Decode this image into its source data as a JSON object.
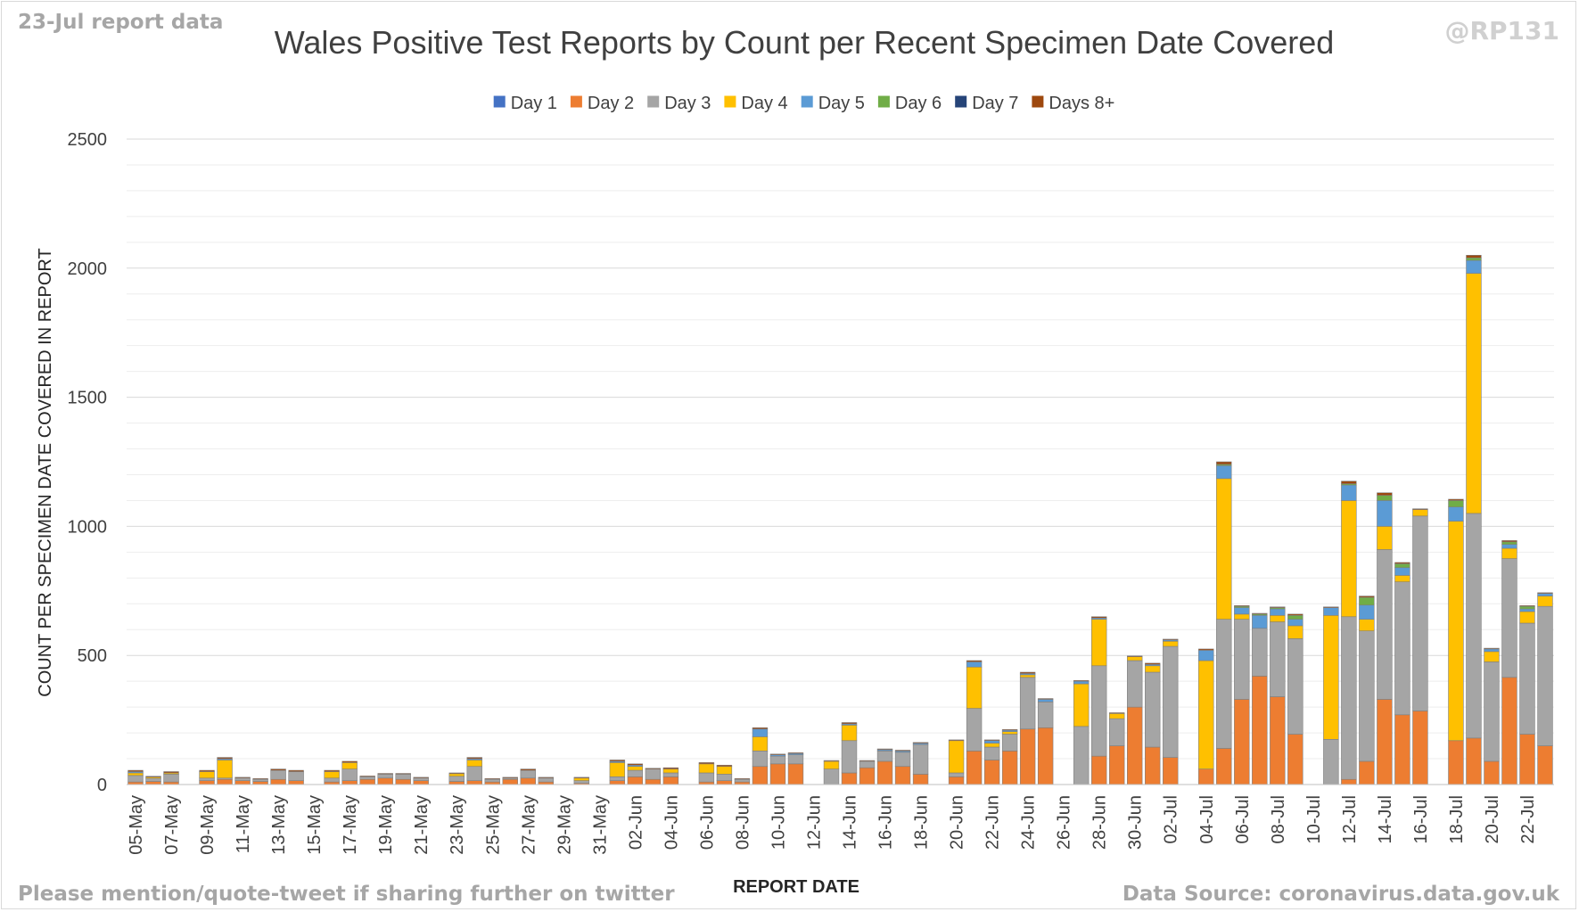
{
  "header": {
    "report_tag": "23-Jul report data",
    "handle": "@RP131"
  },
  "footer": {
    "note": "Please mention/quote-tweet if sharing further on twitter",
    "source": "Data Source: coronavirus.data.gov.uk"
  },
  "colors": {
    "Day 1": "#4472c4",
    "Day 2": "#ed7d31",
    "Day 3": "#a5a5a5",
    "Day 4": "#ffc000",
    "Day 5": "#5b9bd5",
    "Day 6": "#70ad47",
    "Day 7": "#264478",
    "Days 8+": "#9e480e"
  },
  "chart_data": {
    "type": "bar",
    "stacked": true,
    "title": "Wales Positive Test Reports by Count per Recent Specimen Date Covered",
    "xlabel": "REPORT DATE",
    "ylabel": "COUNT PER SPECIMEN DATE COVERED IN REPORT",
    "ylim": [
      0,
      2500
    ],
    "yticks": [
      0,
      500,
      1000,
      1500,
      2000,
      2500
    ],
    "grid": true,
    "legend_position": "top",
    "categories": [
      "05-May",
      "06-May",
      "07-May",
      "08-May",
      "09-May",
      "10-May",
      "11-May",
      "12-May",
      "13-May",
      "14-May",
      "15-May",
      "16-May",
      "17-May",
      "18-May",
      "19-May",
      "20-May",
      "21-May",
      "22-May",
      "23-May",
      "24-May",
      "25-May",
      "26-May",
      "27-May",
      "28-May",
      "29-May",
      "30-May",
      "31-May",
      "01-Jun",
      "02-Jun",
      "03-Jun",
      "04-Jun",
      "05-Jun",
      "06-Jun",
      "07-Jun",
      "08-Jun",
      "09-Jun",
      "10-Jun",
      "11-Jun",
      "12-Jun",
      "13-Jun",
      "14-Jun",
      "15-Jun",
      "16-Jun",
      "17-Jun",
      "18-Jun",
      "19-Jun",
      "20-Jun",
      "21-Jun",
      "22-Jun",
      "23-Jun",
      "24-Jun",
      "25-Jun",
      "26-Jun",
      "27-Jun",
      "28-Jun",
      "29-Jun",
      "30-Jun",
      "01-Jul",
      "02-Jul",
      "03-Jul",
      "04-Jul",
      "05-Jul",
      "06-Jul",
      "07-Jul",
      "08-Jul",
      "09-Jul",
      "10-Jul",
      "11-Jul",
      "12-Jul",
      "13-Jul",
      "14-Jul",
      "15-Jul",
      "16-Jul",
      "17-Jul",
      "18-Jul",
      "19-Jul",
      "20-Jul",
      "21-Jul",
      "22-Jul",
      "23-Jul"
    ],
    "x_tick_labels": [
      "05-May",
      "07-May",
      "09-May",
      "11-May",
      "13-May",
      "15-May",
      "17-May",
      "19-May",
      "21-May",
      "23-May",
      "25-May",
      "27-May",
      "29-May",
      "31-May",
      "02-Jun",
      "04-Jun",
      "06-Jun",
      "08-Jun",
      "10-Jun",
      "12-Jun",
      "14-Jun",
      "16-Jun",
      "18-Jun",
      "20-Jun",
      "22-Jun",
      "24-Jun",
      "26-Jun",
      "28-Jun",
      "30-Jun",
      "02-Jul",
      "04-Jul",
      "06-Jul",
      "08-Jul",
      "10-Jul",
      "12-Jul",
      "14-Jul",
      "16-Jul",
      "18-Jul",
      "20-Jul",
      "22-Jul"
    ],
    "series": [
      {
        "name": "Day 1",
        "values": [
          0,
          0,
          0,
          0,
          0,
          0,
          0,
          0,
          0,
          0,
          0,
          0,
          0,
          0,
          0,
          0,
          0,
          0,
          0,
          0,
          0,
          0,
          0,
          0,
          0,
          0,
          0,
          0,
          0,
          0,
          0,
          0,
          0,
          0,
          0,
          0,
          0,
          0,
          0,
          0,
          0,
          0,
          0,
          0,
          0,
          0,
          0,
          0,
          0,
          0,
          0,
          0,
          0,
          0,
          0,
          0,
          0,
          0,
          0,
          0,
          0,
          0,
          0,
          0,
          0,
          0,
          0,
          0,
          0,
          0,
          0,
          0,
          0,
          0,
          0,
          0,
          0,
          0,
          0,
          0
        ]
      },
      {
        "name": "Day 2",
        "values": [
          10,
          12,
          10,
          0,
          15,
          20,
          15,
          12,
          20,
          15,
          0,
          10,
          15,
          20,
          25,
          20,
          15,
          0,
          12,
          15,
          10,
          20,
          25,
          10,
          0,
          5,
          0,
          15,
          30,
          20,
          30,
          0,
          10,
          15,
          10,
          70,
          80,
          80,
          0,
          0,
          45,
          65,
          90,
          70,
          40,
          0,
          30,
          130,
          95,
          130,
          215,
          220,
          0,
          0,
          110,
          150,
          300,
          145,
          105,
          0,
          60,
          140,
          330,
          420,
          340,
          195,
          0,
          0,
          20,
          90,
          330,
          270,
          285,
          0,
          170,
          180,
          90,
          415,
          195,
          150
        ]
      },
      {
        "name": "Day 3",
        "values": [
          25,
          12,
          30,
          0,
          10,
          5,
          10,
          8,
          35,
          35,
          0,
          15,
          45,
          10,
          15,
          20,
          10,
          0,
          20,
          55,
          10,
          5,
          30,
          15,
          0,
          10,
          0,
          15,
          25,
          40,
          15,
          0,
          35,
          25,
          10,
          60,
          30,
          35,
          0,
          60,
          125,
          25,
          40,
          55,
          115,
          0,
          15,
          165,
          50,
          65,
          200,
          100,
          0,
          225,
          350,
          105,
          180,
          290,
          430,
          0,
          0,
          500,
          310,
          185,
          290,
          370,
          0,
          175,
          630,
          505,
          580,
          515,
          755,
          0,
          0,
          870,
          385,
          460,
          430,
          540
        ]
      },
      {
        "name": "Day 4",
        "values": [
          10,
          5,
          5,
          0,
          25,
          70,
          0,
          0,
          0,
          0,
          0,
          25,
          25,
          0,
          0,
          0,
          0,
          0,
          10,
          25,
          0,
          0,
          0,
          0,
          0,
          10,
          0,
          55,
          15,
          0,
          15,
          0,
          35,
          30,
          0,
          55,
          0,
          0,
          0,
          30,
          60,
          0,
          0,
          0,
          0,
          0,
          125,
          160,
          15,
          10,
          10,
          0,
          0,
          165,
          180,
          20,
          15,
          25,
          20,
          0,
          420,
          545,
          20,
          0,
          25,
          50,
          0,
          480,
          450,
          45,
          90,
          25,
          25,
          0,
          850,
          930,
          40,
          40,
          45,
          40
        ]
      },
      {
        "name": "Day 5",
        "values": [
          5,
          0,
          0,
          0,
          0,
          5,
          0,
          0,
          0,
          0,
          0,
          0,
          0,
          0,
          0,
          0,
          0,
          0,
          0,
          5,
          0,
          0,
          0,
          0,
          0,
          0,
          0,
          5,
          5,
          0,
          0,
          0,
          0,
          0,
          0,
          30,
          5,
          5,
          0,
          0,
          5,
          0,
          5,
          5,
          5,
          0,
          0,
          20,
          10,
          5,
          5,
          10,
          0,
          10,
          5,
          0,
          0,
          5,
          5,
          0,
          40,
          50,
          25,
          50,
          25,
          25,
          0,
          30,
          60,
          55,
          100,
          30,
          0,
          0,
          55,
          50,
          10,
          15,
          10,
          10
        ]
      },
      {
        "name": "Day 6",
        "values": [
          0,
          0,
          0,
          0,
          0,
          0,
          0,
          0,
          0,
          0,
          0,
          0,
          0,
          0,
          0,
          0,
          0,
          0,
          0,
          0,
          0,
          0,
          0,
          0,
          0,
          0,
          0,
          0,
          0,
          0,
          0,
          0,
          0,
          0,
          0,
          0,
          0,
          0,
          0,
          0,
          0,
          0,
          0,
          0,
          0,
          0,
          0,
          0,
          0,
          0,
          0,
          0,
          0,
          0,
          0,
          0,
          0,
          0,
          0,
          0,
          0,
          5,
          5,
          5,
          5,
          15,
          0,
          0,
          5,
          30,
          20,
          15,
          0,
          0,
          25,
          10,
          0,
          10,
          10,
          0
        ]
      },
      {
        "name": "Day 7",
        "values": [
          0,
          0,
          0,
          0,
          0,
          0,
          0,
          0,
          0,
          0,
          0,
          0,
          0,
          0,
          0,
          0,
          0,
          0,
          0,
          0,
          0,
          0,
          0,
          0,
          0,
          0,
          0,
          0,
          0,
          0,
          0,
          0,
          0,
          0,
          0,
          0,
          0,
          0,
          0,
          0,
          0,
          0,
          0,
          0,
          0,
          0,
          0,
          0,
          0,
          0,
          0,
          0,
          0,
          0,
          0,
          0,
          0,
          0,
          0,
          0,
          0,
          0,
          0,
          0,
          0,
          0,
          0,
          0,
          0,
          0,
          0,
          0,
          0,
          0,
          0,
          0,
          0,
          0,
          0,
          0
        ]
      },
      {
        "name": "Days 8+",
        "values": [
          5,
          3,
          5,
          0,
          5,
          5,
          3,
          3,
          5,
          5,
          0,
          5,
          5,
          3,
          3,
          3,
          3,
          0,
          3,
          5,
          3,
          3,
          5,
          3,
          0,
          3,
          0,
          5,
          5,
          3,
          5,
          0,
          5,
          5,
          3,
          5,
          3,
          3,
          0,
          3,
          5,
          3,
          3,
          3,
          3,
          0,
          3,
          5,
          3,
          3,
          5,
          3,
          0,
          3,
          5,
          3,
          3,
          5,
          3,
          0,
          5,
          10,
          3,
          3,
          3,
          5,
          0,
          3,
          10,
          5,
          10,
          5,
          3,
          0,
          5,
          10,
          3,
          5,
          3,
          3
        ]
      }
    ]
  }
}
